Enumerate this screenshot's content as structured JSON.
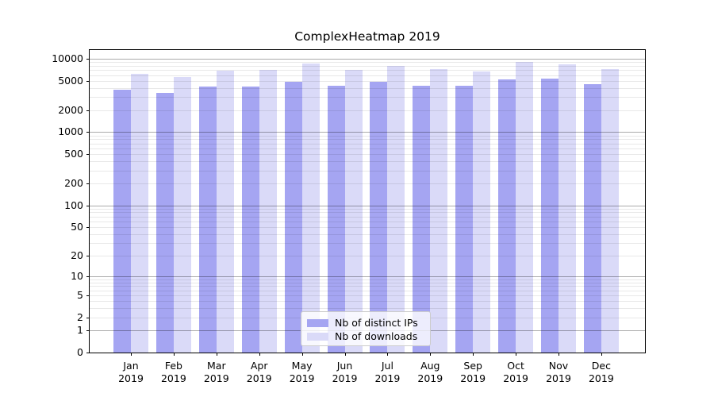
{
  "chart_data": {
    "type": "bar",
    "title": "ComplexHeatmap 2019",
    "categories": [
      "Jan",
      "Feb",
      "Mar",
      "Apr",
      "May",
      "Jun",
      "Jul",
      "Aug",
      "Sep",
      "Oct",
      "Nov",
      "Dec"
    ],
    "year_label": "2019",
    "series": [
      {
        "name": "Nb of distinct IPs",
        "color": "#a5a5f2",
        "values": [
          3750,
          3400,
          4150,
          4200,
          4900,
          4250,
          4800,
          4250,
          4300,
          5200,
          5350,
          4500
        ]
      },
      {
        "name": "Nb of downloads",
        "color": "#dadaf8",
        "values": [
          6300,
          5700,
          6900,
          7000,
          8600,
          7050,
          8050,
          7300,
          6700,
          9150,
          8450,
          7300
        ]
      }
    ],
    "yscale": "log10(x+1)",
    "yticks": [
      10000,
      5000,
      2000,
      1000,
      500,
      200,
      100,
      50,
      20,
      10,
      5,
      2,
      1,
      0
    ],
    "y_major_gridlines": [
      1,
      10,
      100,
      1000,
      10000
    ],
    "ylim": [
      0,
      13500
    ],
    "grid": "major and minor horizontal",
    "legend_position": "lower center inside plot",
    "colors": {
      "major_grid": "#aaaaaa",
      "minor_grid": "#e8e8e8",
      "spine": "#000000"
    }
  }
}
